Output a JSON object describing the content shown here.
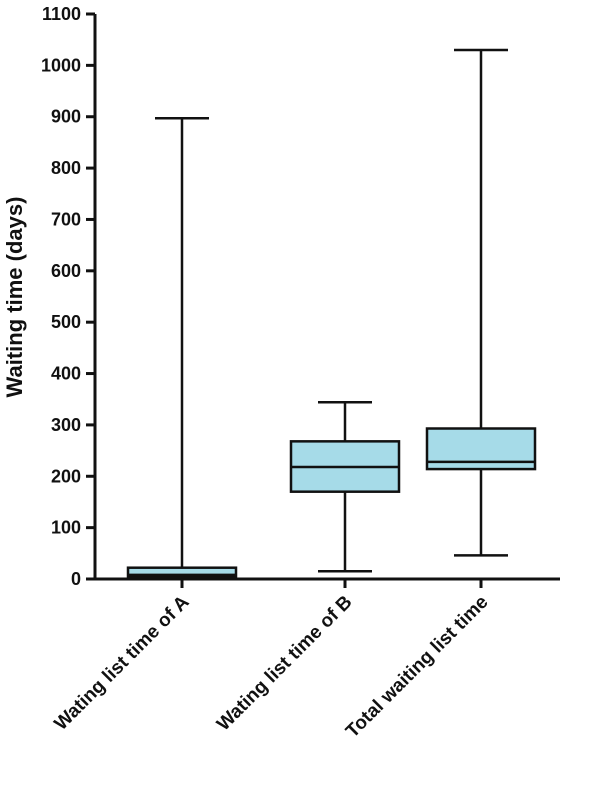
{
  "chart_data": {
    "type": "box",
    "ylabel": "Waiting time (days)",
    "xlabel": "",
    "ylim": [
      0,
      1100
    ],
    "yticks": [
      0,
      100,
      200,
      300,
      400,
      500,
      600,
      700,
      800,
      900,
      1000,
      1100
    ],
    "box_color": "#a6dbe8",
    "series": [
      {
        "category": "Wating list time of A",
        "min": 0,
        "q1": 4,
        "median": 8,
        "q3": 22,
        "max": 897
      },
      {
        "category": "Wating list time of B",
        "min": 15,
        "q1": 170,
        "median": 218,
        "q3": 268,
        "max": 344
      },
      {
        "category": "Total waiting list time",
        "min": 46,
        "q1": 214,
        "median": 228,
        "q3": 293,
        "max": 1030
      }
    ]
  }
}
